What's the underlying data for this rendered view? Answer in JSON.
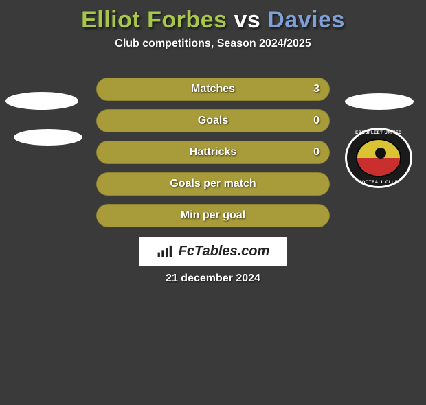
{
  "title": {
    "player1": "Elliot Forbes",
    "vs": "vs",
    "player2": "Davies",
    "color1": "#a7c64a",
    "color_vs": "#ffffff",
    "color2": "#7fa0d6"
  },
  "subtitle": "Club competitions, Season 2024/2025",
  "bars": [
    {
      "label": "Matches",
      "left": "",
      "right": "3",
      "fill_from": "right",
      "fill_pct": 100,
      "fill_color": "#a89b3a"
    },
    {
      "label": "Goals",
      "left": "",
      "right": "0",
      "fill_from": "right",
      "fill_pct": 100,
      "fill_color": "#a89b3a"
    },
    {
      "label": "Hattricks",
      "left": "",
      "right": "0",
      "fill_from": "right",
      "fill_pct": 100,
      "fill_color": "#a89b3a"
    },
    {
      "label": "Goals per match",
      "left": "",
      "right": "",
      "fill_from": "right",
      "fill_pct": 100,
      "fill_color": "#a89b3a"
    },
    {
      "label": "Min per goal",
      "left": "",
      "right": "",
      "fill_from": "right",
      "fill_pct": 100,
      "fill_color": "#a89b3a"
    }
  ],
  "brand": "FcTables.com",
  "date": "21 december 2024",
  "crest": {
    "top_text": "EBBSFLEET UNITED",
    "bottom_text": "FOOTBALL CLUB"
  },
  "colors": {
    "bg": "#3a3a3a",
    "bar_bg": "#a89b3a"
  }
}
